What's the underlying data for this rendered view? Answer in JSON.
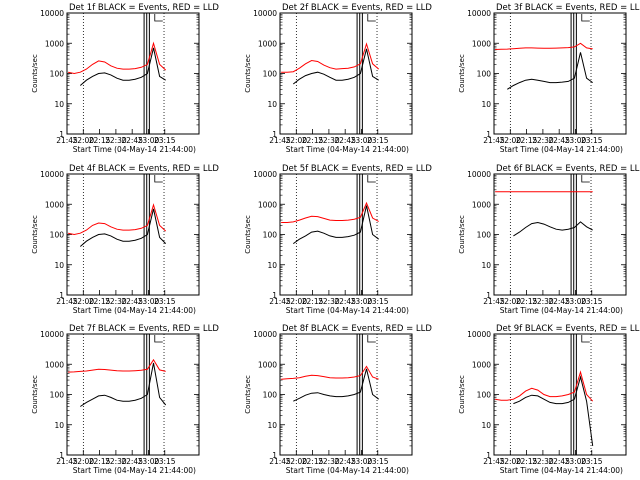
{
  "figure": {
    "xaxis_label": "Start Time (04-May-14 21:44:00)",
    "yaxis_label": "Counts/sec",
    "xticks": [
      "21:45",
      "22:00",
      "22:15",
      "22:30",
      "22:45",
      "23:00",
      "23:15"
    ],
    "yticks": [
      "1",
      "10",
      "100",
      "1000",
      "10000"
    ],
    "series_colors": {
      "events": "#000000",
      "lld": "#ff0000"
    }
  },
  "chart_data": [
    {
      "type": "line",
      "title": "Det 1f BLACK = Events, RED = LLD",
      "xlabel": "Start Time (04-May-14 21:44:00)",
      "ylabel": "Counts/sec",
      "x": [
        "21:45",
        "21:50",
        "21:55",
        "22:00",
        "22:05",
        "22:10",
        "22:15",
        "22:20",
        "22:25",
        "22:30",
        "22:35",
        "22:40",
        "22:45",
        "22:50",
        "22:55",
        "23:00",
        "23:05"
      ],
      "y_scale": "log",
      "ylim": [
        1,
        10000
      ],
      "series": [
        {
          "name": "BLACK = Events",
          "color": "#000000",
          "values": [
            null,
            null,
            40,
            60,
            80,
            100,
            105,
            90,
            70,
            60,
            60,
            65,
            75,
            100,
            700,
            80,
            60
          ]
        },
        {
          "name": "RED = LLD",
          "color": "#ff0000",
          "values": [
            110,
            100,
            110,
            140,
            200,
            260,
            240,
            180,
            150,
            140,
            140,
            145,
            160,
            200,
            1000,
            200,
            130
          ]
        }
      ]
    },
    {
      "type": "line",
      "title": "Det 2f BLACK = Events, RED = LLD",
      "xlabel": "Start Time (04-May-14 21:44:00)",
      "ylabel": "Counts/sec",
      "x": [
        "21:45",
        "21:50",
        "21:55",
        "22:00",
        "22:05",
        "22:10",
        "22:15",
        "22:20",
        "22:25",
        "22:30",
        "22:35",
        "22:40",
        "22:45",
        "22:50",
        "22:55",
        "23:00",
        "23:05"
      ],
      "y_scale": "log",
      "ylim": [
        1,
        10000
      ],
      "series": [
        {
          "name": "BLACK = Events",
          "color": "#000000",
          "values": [
            null,
            null,
            45,
            65,
            85,
            100,
            110,
            95,
            75,
            60,
            60,
            65,
            75,
            100,
            650,
            80,
            60
          ]
        },
        {
          "name": "RED = LLD",
          "color": "#ff0000",
          "values": [
            110,
            110,
            115,
            150,
            210,
            270,
            250,
            190,
            155,
            140,
            145,
            150,
            165,
            210,
            950,
            210,
            140
          ]
        }
      ]
    },
    {
      "type": "line",
      "title": "Det 3f BLACK = Events, RED = LLD",
      "xlabel": "Start Time (04-May-14 21:44:00)",
      "ylabel": "Counts/sec",
      "x": [
        "21:45",
        "21:50",
        "21:55",
        "22:00",
        "22:05",
        "22:10",
        "22:15",
        "22:20",
        "22:25",
        "22:30",
        "22:35",
        "22:40",
        "22:45",
        "22:50",
        "22:55",
        "23:00",
        "23:05"
      ],
      "y_scale": "log",
      "ylim": [
        1,
        10000
      ],
      "series": [
        {
          "name": "BLACK = Events",
          "color": "#000000",
          "values": [
            null,
            null,
            30,
            40,
            50,
            60,
            65,
            60,
            55,
            50,
            50,
            52,
            55,
            70,
            500,
            70,
            50
          ]
        },
        {
          "name": "RED = LLD",
          "color": "#ff0000",
          "values": [
            620,
            630,
            640,
            660,
            680,
            700,
            700,
            690,
            680,
            680,
            690,
            700,
            720,
            760,
            1000,
            700,
            650
          ]
        }
      ]
    },
    {
      "type": "line",
      "title": "Det 4f BLACK = Events, RED = LLD",
      "xlabel": "Start Time (04-May-14 21:44:00)",
      "ylabel": "Counts/sec",
      "x": [
        "21:45",
        "21:50",
        "21:55",
        "22:00",
        "22:05",
        "22:10",
        "22:15",
        "22:20",
        "22:25",
        "22:30",
        "22:35",
        "22:40",
        "22:45",
        "22:50",
        "22:55",
        "23:00",
        "23:05"
      ],
      "y_scale": "log",
      "ylim": [
        1,
        10000
      ],
      "series": [
        {
          "name": "BLACK = Events",
          "color": "#000000",
          "values": [
            null,
            null,
            40,
            60,
            80,
            100,
            105,
            90,
            70,
            60,
            60,
            65,
            75,
            100,
            700,
            80,
            50
          ]
        },
        {
          "name": "RED = LLD",
          "color": "#ff0000",
          "values": [
            110,
            100,
            110,
            140,
            200,
            240,
            230,
            180,
            150,
            140,
            140,
            145,
            160,
            200,
            950,
            200,
            130
          ]
        }
      ]
    },
    {
      "type": "line",
      "title": "Det 5f BLACK = Events, RED = LLD",
      "xlabel": "Start Time (04-May-14 21:44:00)",
      "ylabel": "Counts/sec",
      "x": [
        "21:45",
        "21:50",
        "21:55",
        "22:00",
        "22:05",
        "22:10",
        "22:15",
        "22:20",
        "22:25",
        "22:30",
        "22:35",
        "22:40",
        "22:45",
        "22:50",
        "22:55",
        "23:00",
        "23:05"
      ],
      "y_scale": "log",
      "ylim": [
        1,
        10000
      ],
      "series": [
        {
          "name": "BLACK = Events",
          "color": "#000000",
          "values": [
            null,
            null,
            50,
            70,
            90,
            120,
            130,
            110,
            90,
            80,
            80,
            85,
            95,
            120,
            900,
            100,
            70
          ]
        },
        {
          "name": "RED = LLD",
          "color": "#ff0000",
          "values": [
            250,
            250,
            260,
            300,
            350,
            400,
            390,
            340,
            300,
            290,
            290,
            300,
            320,
            370,
            1100,
            350,
            270
          ]
        }
      ]
    },
    {
      "type": "line",
      "title": "Det 6f BLACK = Events, RED = LLD",
      "xlabel": "Start Time (04-May-14 21:44:00)",
      "ylabel": "Counts/sec",
      "x": [
        "21:45",
        "21:50",
        "21:55",
        "22:00",
        "22:05",
        "22:10",
        "22:15",
        "22:20",
        "22:25",
        "22:30",
        "22:35",
        "22:40",
        "22:45",
        "22:50",
        "22:55",
        "23:00",
        "23:05"
      ],
      "y_scale": "log",
      "ylim": [
        1,
        10000
      ],
      "series": [
        {
          "name": "BLACK = Events",
          "color": "#000000",
          "values": [
            null,
            null,
            null,
            90,
            120,
            170,
            230,
            250,
            220,
            180,
            150,
            140,
            150,
            170,
            260,
            180,
            140
          ]
        },
        {
          "name": "RED = LLD",
          "color": "#ff0000",
          "values": [
            2600,
            2600,
            2600,
            2600,
            2600,
            2600,
            2600,
            2600,
            2600,
            2600,
            2600,
            2600,
            2600,
            2600,
            2600,
            2600,
            2600
          ]
        }
      ]
    },
    {
      "type": "line",
      "title": "Det 7f BLACK = Events, RED = LLD",
      "xlabel": "Start Time (04-May-14 21:44:00)",
      "ylabel": "Counts/sec",
      "x": [
        "21:45",
        "21:50",
        "21:55",
        "22:00",
        "22:05",
        "22:10",
        "22:15",
        "22:20",
        "22:25",
        "22:30",
        "22:35",
        "22:40",
        "22:45",
        "22:50",
        "22:55",
        "23:00",
        "23:05"
      ],
      "y_scale": "log",
      "ylim": [
        1,
        10000
      ],
      "series": [
        {
          "name": "BLACK = Events",
          "color": "#000000",
          "values": [
            null,
            null,
            40,
            55,
            70,
            90,
            95,
            80,
            65,
            60,
            60,
            65,
            75,
            100,
            1100,
            80,
            45
          ]
        },
        {
          "name": "RED = LLD",
          "color": "#ff0000",
          "values": [
            550,
            560,
            580,
            600,
            640,
            680,
            670,
            640,
            610,
            600,
            600,
            610,
            630,
            680,
            1400,
            650,
            580
          ]
        }
      ]
    },
    {
      "type": "line",
      "title": "Det 8f BLACK = Events, RED = LLD",
      "xlabel": "Start Time (04-May-14 21:44:00)",
      "ylabel": "Counts/sec",
      "x": [
        "21:45",
        "21:50",
        "21:55",
        "22:00",
        "22:05",
        "22:10",
        "22:15",
        "22:20",
        "22:25",
        "22:30",
        "22:35",
        "22:40",
        "22:45",
        "22:50",
        "22:55",
        "23:00",
        "23:05"
      ],
      "y_scale": "log",
      "ylim": [
        1,
        10000
      ],
      "series": [
        {
          "name": "BLACK = Events",
          "color": "#000000",
          "values": [
            null,
            null,
            60,
            75,
            95,
            110,
            115,
            100,
            90,
            85,
            85,
            90,
            100,
            120,
            700,
            100,
            70
          ]
        },
        {
          "name": "RED = LLD",
          "color": "#ff0000",
          "values": [
            320,
            330,
            340,
            360,
            400,
            430,
            420,
            390,
            360,
            350,
            350,
            360,
            380,
            420,
            850,
            380,
            320
          ]
        }
      ]
    },
    {
      "type": "line",
      "title": "Det 9f BLACK = Events, RED = LLD",
      "xlabel": "Start Time (04-May-14 21:44:00)",
      "ylabel": "Counts/sec",
      "x": [
        "21:45",
        "21:50",
        "21:55",
        "22:00",
        "22:05",
        "22:10",
        "22:15",
        "22:20",
        "22:25",
        "22:30",
        "22:35",
        "22:40",
        "22:45",
        "22:50",
        "22:55",
        "23:00",
        "23:05"
      ],
      "y_scale": "log",
      "ylim": [
        1,
        10000
      ],
      "series": [
        {
          "name": "BLACK = Events",
          "color": "#000000",
          "values": [
            null,
            null,
            null,
            50,
            60,
            80,
            95,
            90,
            70,
            55,
            50,
            50,
            55,
            70,
            380,
            60,
            2
          ]
        },
        {
          "name": "RED = LLD",
          "color": "#ff0000",
          "values": [
            70,
            65,
            65,
            70,
            90,
            130,
            160,
            140,
            100,
            85,
            85,
            90,
            100,
            120,
            550,
            100,
            60
          ]
        }
      ]
    }
  ]
}
